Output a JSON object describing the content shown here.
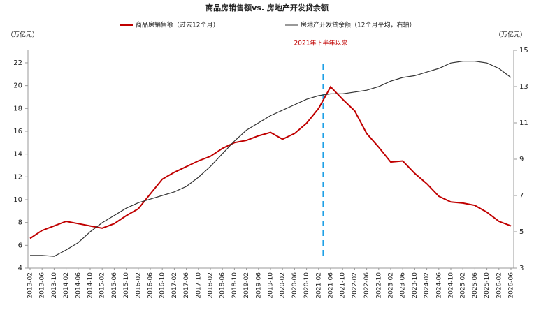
{
  "chart_data": {
    "type": "line",
    "title": "商品房销售额vs. 房地产开发贷余额",
    "y_unit": "（万亿元）",
    "y2_unit": "（万亿元）",
    "annotation": "2021年下半年以来",
    "categories": [
      "2013-02",
      "2013-06",
      "2013-10",
      "2014-02",
      "2014-06",
      "2014-10",
      "2015-02",
      "2015-06",
      "2015-10",
      "2016-02",
      "2016-06",
      "2016-10",
      "2017-02",
      "2017-06",
      "2017-10",
      "2018-02",
      "2018-06",
      "2018-10",
      "2019-02",
      "2019-06",
      "2019-10",
      "2020-02",
      "2020-06",
      "2020-10",
      "2021-02",
      "2021-06",
      "2021-10",
      "2022-02",
      "2022-06",
      "2022-10",
      "2023-02",
      "2023-06",
      "2023-10",
      "2024-02",
      "2024-06",
      "2024-10",
      "2025-02",
      "2025-06",
      "2025-10",
      "2026-02",
      "2026-06"
    ],
    "series": [
      {
        "name": "商品房销售额（过去12个月）",
        "color": "#c00000",
        "values": [
          6.6,
          7.3,
          7.7,
          8.1,
          7.9,
          7.7,
          7.5,
          7.9,
          8.6,
          9.2,
          10.5,
          11.8,
          12.4,
          12.9,
          13.4,
          13.8,
          14.5,
          15.0,
          15.2,
          15.6,
          15.9,
          15.3,
          15.8,
          16.7,
          18.0,
          19.9,
          18.8,
          17.8,
          15.8,
          14.6,
          13.3,
          13.4,
          12.3,
          11.4,
          10.3,
          9.8,
          9.7,
          9.5,
          8.9,
          8.1,
          7.7
        ]
      },
      {
        "name": "房地产开发贷余额（12个月平均，右轴）",
        "color": "#333333",
        "axis": "y2",
        "values": [
          3.7,
          3.7,
          3.65,
          4.0,
          4.4,
          5.0,
          5.5,
          5.9,
          6.3,
          6.6,
          6.8,
          7.0,
          7.2,
          7.5,
          8.0,
          8.6,
          9.3,
          10.0,
          10.6,
          11.0,
          11.4,
          11.7,
          12.0,
          12.3,
          12.5,
          12.6,
          12.6,
          12.7,
          12.8,
          13.0,
          13.3,
          13.5,
          13.6,
          13.8,
          14.0,
          14.3,
          14.4,
          14.4,
          14.3,
          14.0,
          13.5
        ]
      }
    ],
    "ylim": [
      4,
      23.1
    ],
    "yticks": [
      4,
      6,
      8,
      10,
      12,
      14,
      16,
      18,
      20,
      22
    ],
    "y2lim": [
      3,
      15
    ],
    "y2ticks": [
      3,
      5,
      7,
      9,
      11,
      13,
      15
    ],
    "grid": false
  }
}
